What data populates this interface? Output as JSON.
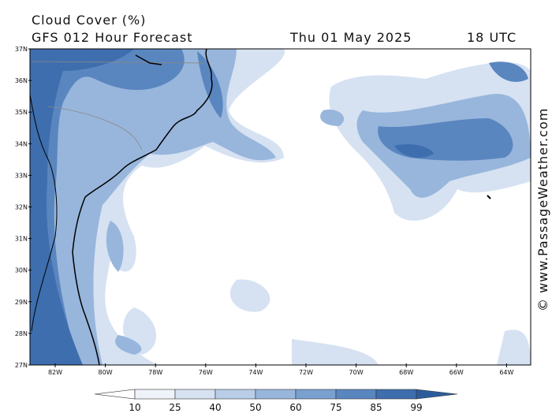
{
  "header": {
    "title": "Cloud Cover (%)",
    "subtitle": "GFS 012 Hour Forecast",
    "date": "Thu 01 May 2025",
    "time": "18 UTC"
  },
  "map": {
    "lat_labels": [
      "37N",
      "36N",
      "35N",
      "34N",
      "33N",
      "32N",
      "31N",
      "30N",
      "29N",
      "28N",
      "27N"
    ],
    "lon_labels": [
      "82W",
      "80W",
      "78W",
      "76W",
      "74W",
      "72W",
      "70W",
      "68W",
      "66W",
      "64W"
    ]
  },
  "colorbar": {
    "ticks": [
      10,
      25,
      40,
      50,
      60,
      75,
      85,
      99
    ]
  },
  "credit": "© www.PassageWeather.com"
}
